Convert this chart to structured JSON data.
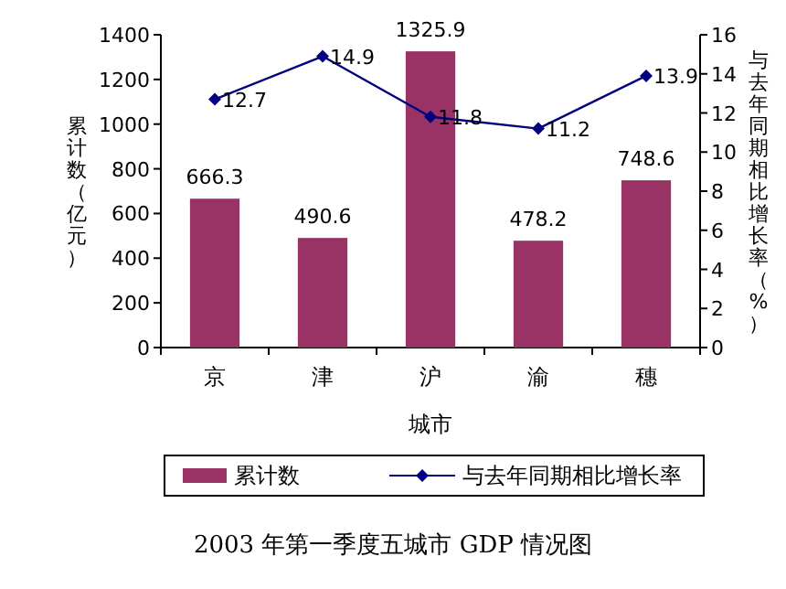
{
  "chart_data": {
    "type": "bar",
    "title": "2003 年第一季度五城市 GDP 情况图",
    "xlabel": "城市",
    "ylabel": "累计数（亿元）",
    "y2label": "与去年同期相比增长率（%）",
    "categories": [
      "京",
      "津",
      "沪",
      "渝",
      "穗"
    ],
    "series": [
      {
        "name": "累计数",
        "color": "#993366",
        "values": [
          666.3,
          490.6,
          1325.9,
          478.2,
          748.6
        ]
      },
      {
        "name": "与去年同期相比增长率",
        "type": "line",
        "axis": "y2",
        "color": "#000080",
        "marker": "diamond",
        "values": [
          12.7,
          14.9,
          11.8,
          11.2,
          13.9
        ]
      }
    ],
    "ylim": [
      0,
      1400
    ],
    "yticks": [
      0,
      200,
      400,
      600,
      800,
      1000,
      1200,
      1400
    ],
    "y2lim": [
      0,
      16
    ],
    "y2ticks": [
      0,
      2,
      4,
      6,
      8,
      10,
      12,
      14,
      16
    ],
    "data_labels": true,
    "legend": "bottom",
    "grid": false
  }
}
